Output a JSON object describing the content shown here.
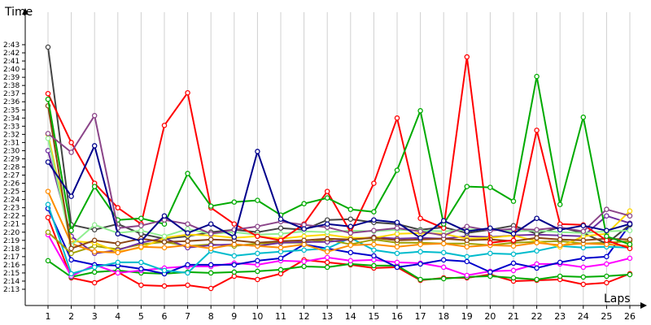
{
  "chart_data": {
    "type": "line",
    "ylabel": "Time",
    "xlabel": "Laps",
    "x": [
      1,
      2,
      3,
      4,
      5,
      6,
      7,
      8,
      9,
      10,
      11,
      12,
      13,
      14,
      15,
      16,
      17,
      18,
      19,
      20,
      21,
      22,
      23,
      24,
      25,
      26
    ],
    "y_ticks": [
      "2:13",
      "2:14",
      "2:15",
      "2:16",
      "2:17",
      "2:18",
      "2:19",
      "2:20",
      "2:21",
      "2:22",
      "2:23",
      "2:24",
      "2:25",
      "2:26",
      "2:27",
      "2:28",
      "2:29",
      "2:30",
      "2:31",
      "2:32",
      "2:33",
      "2:34",
      "2:35",
      "2:36",
      "2:37",
      "2:38",
      "2:39",
      "2:40",
      "2:41",
      "2:42",
      "2:43"
    ],
    "ylim_seconds": [
      132,
      164
    ],
    "grid": "vertical",
    "legend": "none",
    "series": [
      {
        "color": "#ff0000",
        "values": [
          141.8,
          134.4,
          133.8,
          135.1,
          133.5,
          133.4,
          133.5,
          133.1,
          134.6,
          134.2,
          134.9,
          136.6,
          136.3,
          136.0,
          135.6,
          135.7,
          134.1,
          134.4,
          134.4,
          134.8,
          134.0,
          134.1,
          134.2,
          133.6,
          133.8,
          134.9
        ]
      },
      {
        "color": "#00aa00",
        "values": [
          136.5,
          134.5,
          135.1,
          135.3,
          135.0,
          134.9,
          135.1,
          135.0,
          135.1,
          135.2,
          135.4,
          135.8,
          135.7,
          136.1,
          135.9,
          135.9,
          134.2,
          134.3,
          134.5,
          134.6,
          134.4,
          134.2,
          134.6,
          134.5,
          134.6,
          134.8
        ]
      },
      {
        "color": "#ff00ff",
        "values": [
          139.7,
          134.6,
          136.0,
          135.0,
          135.3,
          135.6,
          135.8,
          135.8,
          136.2,
          136.0,
          136.5,
          136.4,
          136.9,
          136.5,
          136.6,
          136.3,
          136.2,
          135.7,
          134.7,
          135.2,
          135.3,
          136.1,
          136.1,
          135.7,
          136.1,
          136.8
        ]
      },
      {
        "color": "#0000cc",
        "values": [
          142.9,
          136.6,
          136.0,
          135.9,
          135.5,
          134.9,
          136.0,
          136.0,
          136.0,
          136.5,
          136.8,
          138.5,
          138.0,
          137.5,
          137.1,
          135.7,
          136.1,
          136.6,
          136.4,
          135.1,
          136.2,
          135.6,
          136.3,
          136.8,
          137.0,
          140.9
        ]
      },
      {
        "color": "#00bbcc",
        "values": [
          143.4,
          134.9,
          135.7,
          136.3,
          136.3,
          135.3,
          135.0,
          137.7,
          137.1,
          137.4,
          137.6,
          137.8,
          138.0,
          139.3,
          137.8,
          137.4,
          137.6,
          137.5,
          137.0,
          137.4,
          137.3,
          137.7,
          138.3,
          138.1,
          138.2,
          138.1
        ]
      },
      {
        "color": "#a0a000",
        "values": [
          140.0,
          137.4,
          138.3,
          137.9,
          138.5,
          138.8,
          138.3,
          138.5,
          138.3,
          138.6,
          138.7,
          138.7,
          139.1,
          138.5,
          139.1,
          138.7,
          138.7,
          138.6,
          138.6,
          138.4,
          138.7,
          138.8,
          138.9,
          138.6,
          138.7,
          138.9
        ]
      },
      {
        "color": "#7030a0",
        "values": [
          150.0,
          139.5,
          137.4,
          137.8,
          138.7,
          139.3,
          138.1,
          138.4,
          138.5,
          138.3,
          138.7,
          138.8,
          138.8,
          139.1,
          139.4,
          139.2,
          139.3,
          139.2,
          139.5,
          139.4,
          139.6,
          139.7,
          139.6,
          139.5,
          142.0,
          141.1
        ]
      },
      {
        "color": "#444444",
        "values": [
          162.7,
          140.9,
          140.3,
          141.0,
          139.8,
          139.2,
          139.5,
          140.0,
          140.3,
          140.0,
          140.5,
          140.3,
          141.5,
          141.6,
          141.2,
          141.0,
          140.3,
          140.6,
          139.9,
          140.3,
          140.8,
          139.8,
          140.6,
          139.9,
          138.6,
          140.9
        ]
      },
      {
        "color": "#ffd700",
        "values": [
          152.0,
          138.9,
          138.7,
          137.6,
          138.1,
          139.3,
          139.7,
          139.6,
          139.3,
          139.5,
          139.2,
          139.5,
          139.7,
          139.3,
          139.3,
          139.8,
          139.9,
          139.8,
          139.2,
          139.3,
          139.6,
          138.9,
          138.2,
          139.5,
          139.8,
          142.6
        ]
      },
      {
        "color": "#ff8c00",
        "values": [
          145.0,
          138.6,
          137.6,
          137.5,
          138.2,
          138.1,
          138.4,
          138.0,
          138.5,
          138.3,
          138.1,
          138.5,
          137.6,
          138.4,
          138.5,
          138.2,
          138.5,
          138.6,
          138.2,
          138.4,
          138.3,
          138.7,
          138.4,
          138.6,
          138.5,
          138.3
        ]
      },
      {
        "color": "#90ee90",
        "values": [
          151.5,
          138.4,
          140.9,
          139.9,
          140.2,
          139.5,
          140.4,
          139.8,
          140.0,
          139.7,
          139.8,
          140.1,
          140.0,
          140.2,
          140.1,
          140.3,
          140.2,
          140.1,
          140.3,
          140.4,
          140.1,
          140.2,
          140.0,
          139.9,
          140.1,
          140.2
        ]
      },
      {
        "color": "#8b4513",
        "values": [
          155.5,
          138.0,
          139.0,
          138.6,
          139.2,
          138.8,
          138.9,
          139.1,
          139.0,
          138.7,
          138.9,
          139.0,
          139.2,
          139.1,
          139.3,
          139.0,
          139.1,
          139.2,
          139.0,
          139.1,
          138.9,
          139.3,
          139.1,
          139.0,
          139.2,
          139.1
        ]
      },
      {
        "color": "#ff0000",
        "values": [
          157.0,
          151.0,
          146.0,
          143.0,
          141.0,
          153.1,
          157.1,
          143.0,
          141.0,
          139.5,
          139.0,
          141.0,
          145.0,
          140.0,
          146.0,
          154.0,
          141.7,
          140.5,
          161.5,
          138.7,
          139.0,
          152.5,
          141.0,
          140.9,
          139.0,
          138.0
        ]
      },
      {
        "color": "#00aa00",
        "values": [
          156.3,
          140.2,
          145.6,
          141.5,
          141.7,
          141.0,
          147.2,
          143.2,
          143.7,
          143.9,
          142.1,
          143.5,
          144.2,
          142.8,
          142.5,
          147.6,
          154.9,
          141.0,
          145.6,
          145.5,
          143.8,
          159.1,
          143.4,
          154.1,
          139.5,
          138.5
        ]
      },
      {
        "color": "#8b4589",
        "values": [
          152.1,
          149.8,
          154.3,
          140.5,
          140.8,
          141.5,
          141.0,
          139.8,
          140.3,
          140.7,
          141.3,
          140.9,
          140.6,
          139.9,
          140.2,
          140.5,
          140.1,
          139.6,
          140.7,
          140.2,
          140.4,
          140.3,
          140.6,
          140.1,
          142.8,
          142.0
        ]
      },
      {
        "color": "#00008b",
        "values": [
          148.6,
          144.4,
          150.6,
          139.8,
          138.9,
          142.0,
          139.9,
          141.0,
          139.4,
          149.9,
          141.6,
          140.4,
          141.0,
          140.7,
          141.5,
          141.2,
          139.3,
          141.4,
          140.1,
          140.5,
          139.8,
          141.7,
          140.3,
          140.8,
          140.2,
          141.0
        ]
      }
    ]
  }
}
